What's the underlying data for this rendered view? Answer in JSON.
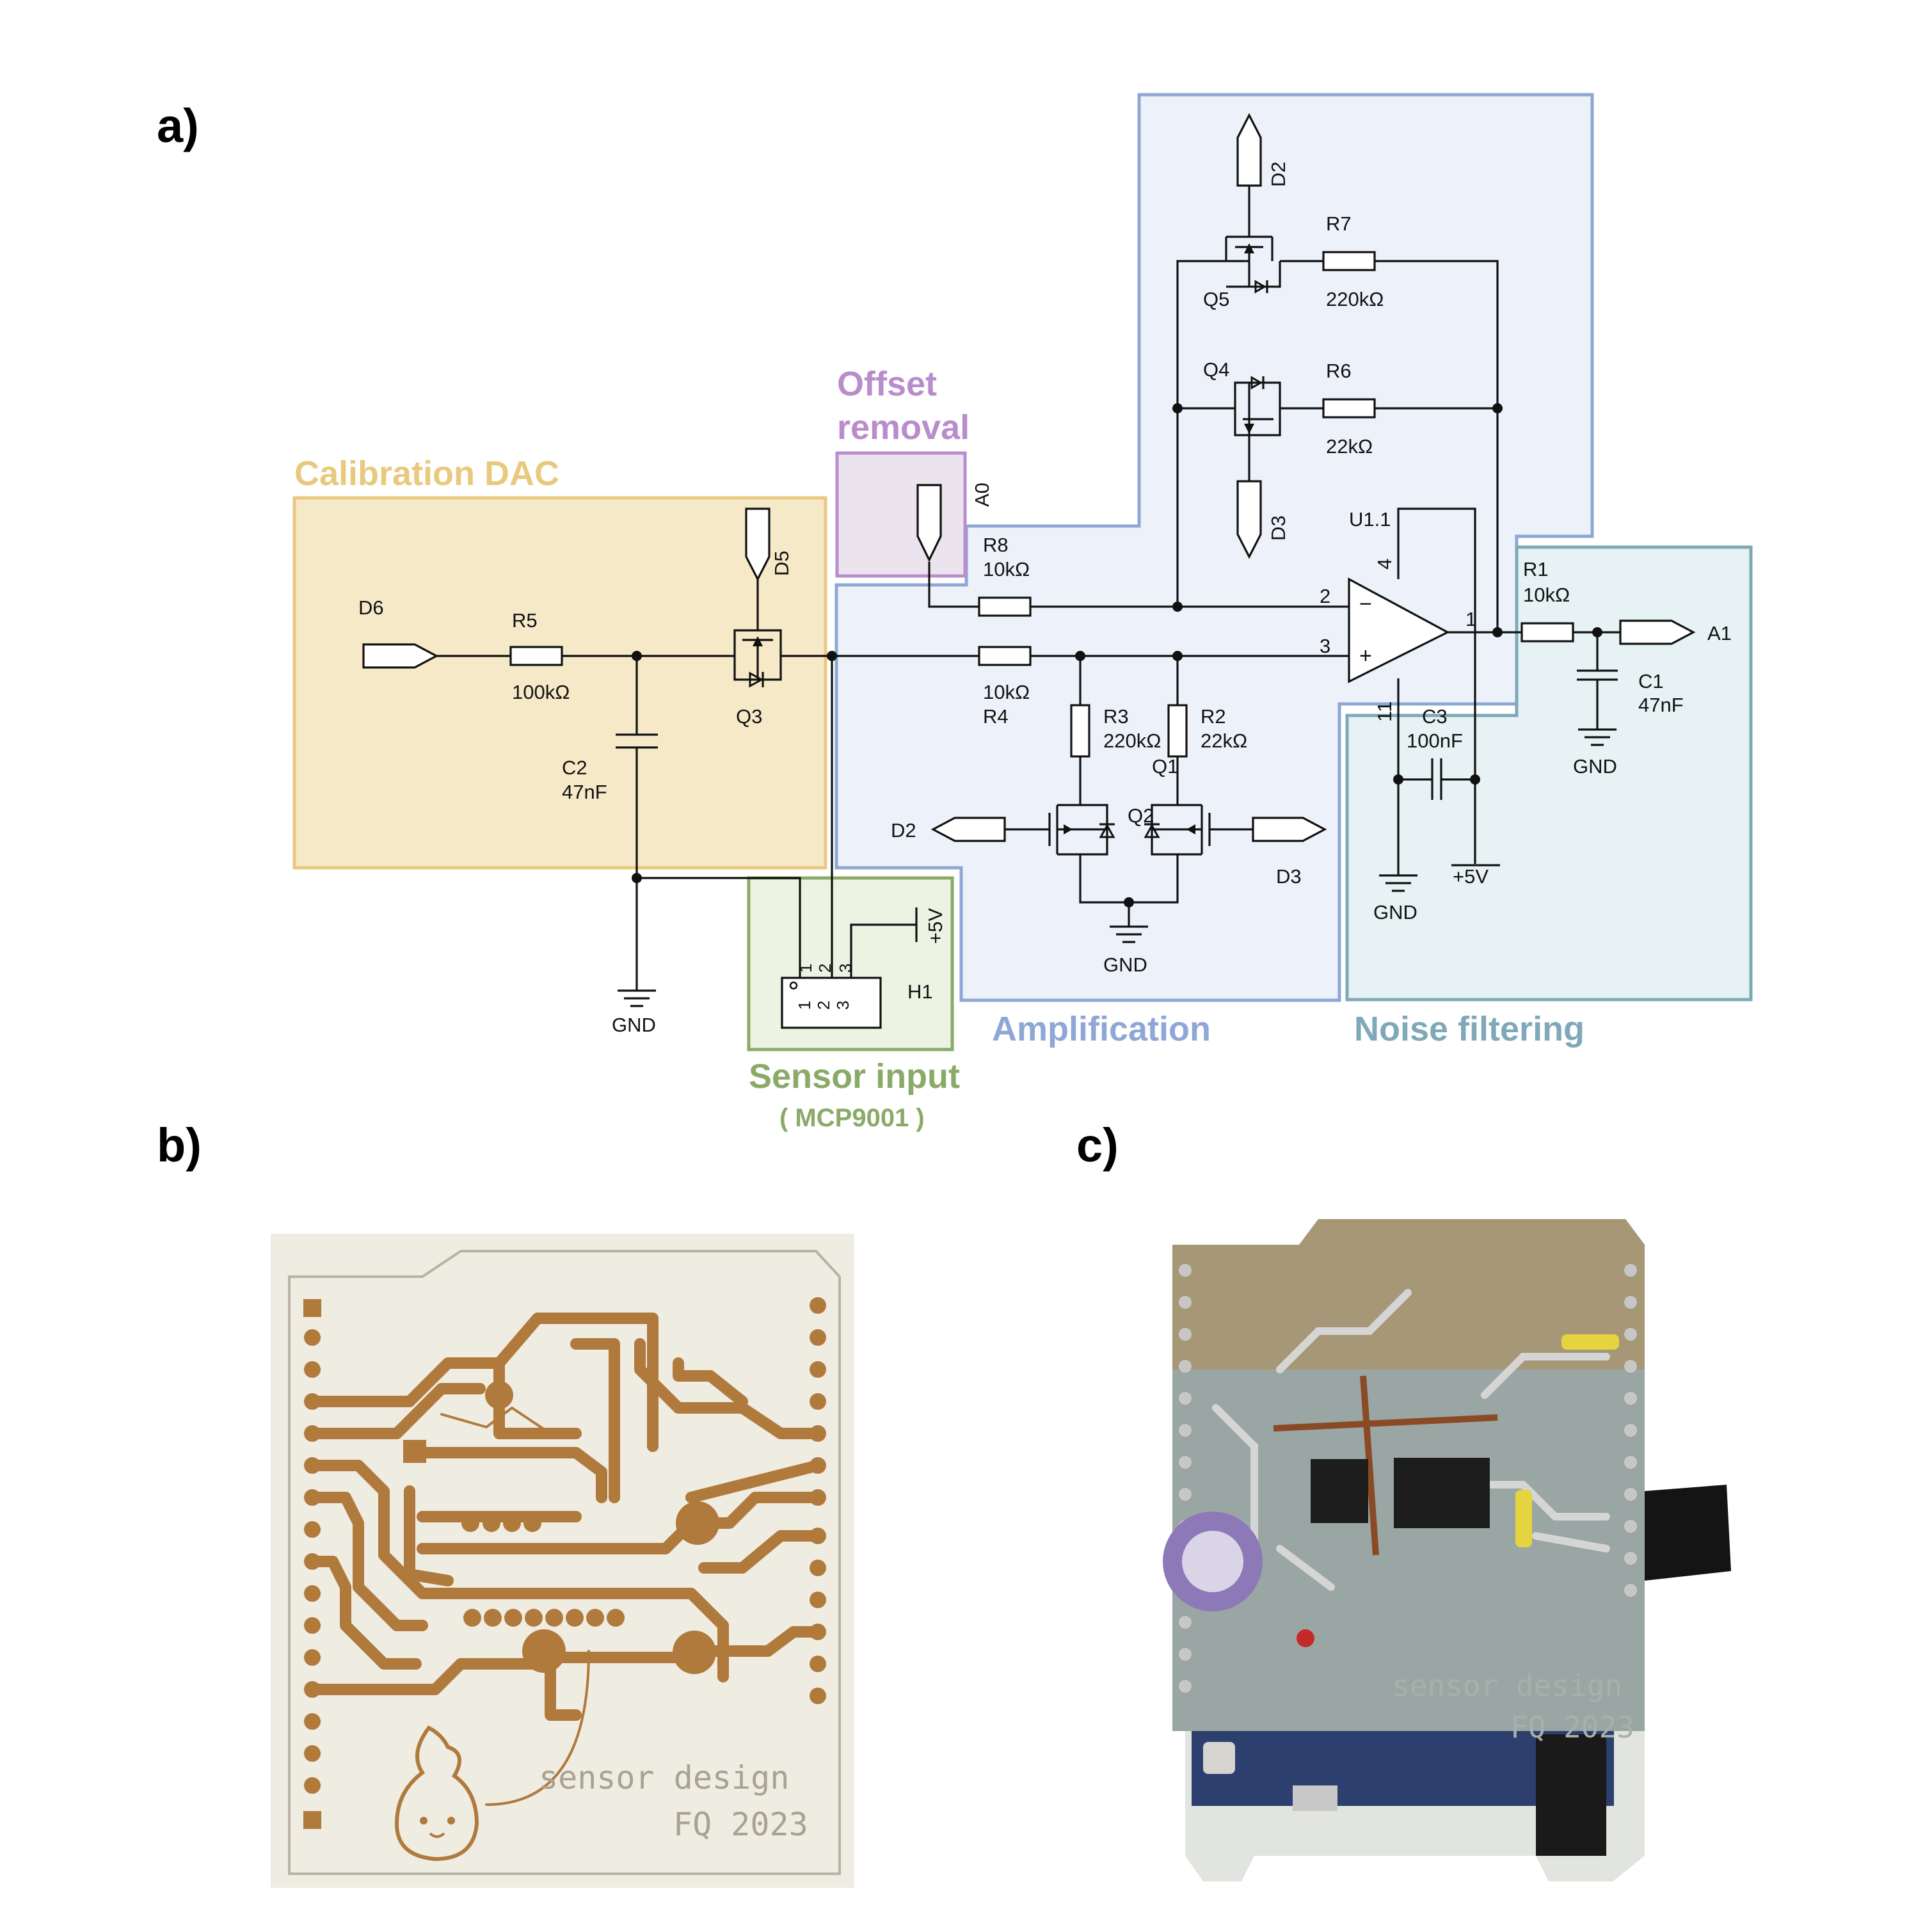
{
  "panels": {
    "a": "a)",
    "b": "b)",
    "c": "c)"
  },
  "sections": {
    "calibration": {
      "title": "Calibration DAC",
      "color": "#e8c97e",
      "fill": "#f6e9c8"
    },
    "offset": {
      "title_line1": "Offset",
      "title_line2": "removal",
      "color": "#b98ccc",
      "fill": "#ebe4ef"
    },
    "amplification": {
      "title": "Amplification",
      "color": "#8ea7d6",
      "fill": "#edf2fa"
    },
    "noise": {
      "title": "Noise filtering",
      "color": "#7fa9b8",
      "fill": "#e6f2f3"
    },
    "sensor": {
      "title": "Sensor input",
      "subtitle": "( MCP9001 )",
      "color": "#8aaa68",
      "fill": "#edf3e3"
    }
  },
  "components": {
    "D6": "D6",
    "R5": "R5",
    "R5_val": "100kΩ",
    "C2": "C2",
    "C2_val": "47nF",
    "Q3": "Q3",
    "D5": "D5",
    "GND": "GND",
    "A0": "A0",
    "R8": "R8",
    "R8_val": "10kΩ",
    "R4": "R4",
    "R4_val": "10kΩ",
    "R3": "R3",
    "R3_val": "220kΩ",
    "R2": "R2",
    "R2_val": "22kΩ",
    "Q1": "Q1",
    "Q2": "Q2",
    "D2": "D2",
    "D3": "D3",
    "Q5": "Q5",
    "Q4": "Q4",
    "R7": "R7",
    "R7_val": "220kΩ",
    "R6": "R6",
    "R6_val": "22kΩ",
    "U1": "U1.1",
    "pin2": "2",
    "pin3": "3",
    "pin4": "4",
    "pin11": "11",
    "pin1": "1",
    "minus": "−",
    "plus": "+",
    "C3": "C3",
    "C3_val": "100nF",
    "P5V": "+5V",
    "R1": "R1",
    "R1_val": "10kΩ",
    "C1": "C1",
    "C1_val": "47nF",
    "A1": "A1",
    "H1": "H1",
    "h1_pin1": "1",
    "h1_pin2": "2",
    "h1_pin3": "3"
  },
  "pcb": {
    "line1": "sensor design",
    "line2": "FQ 2023",
    "trace_color": "#b07a3c",
    "board_color": "#efece2"
  },
  "photo": {
    "line1": "sensor design",
    "line2": "FQ 2023"
  }
}
